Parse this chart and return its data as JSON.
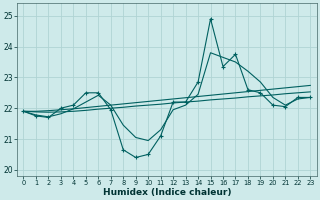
{
  "xlabel": "Humidex (Indice chaleur)",
  "xlim": [
    -0.5,
    23.5
  ],
  "ylim": [
    19.8,
    25.4
  ],
  "yticks": [
    20,
    21,
    22,
    23,
    24,
    25
  ],
  "xticks": [
    0,
    1,
    2,
    3,
    4,
    5,
    6,
    7,
    8,
    9,
    10,
    11,
    12,
    13,
    14,
    15,
    16,
    17,
    18,
    19,
    20,
    21,
    22,
    23
  ],
  "bg_color": "#ceeaea",
  "grid_color": "#b0d4d4",
  "line_color": "#006060",
  "main_line": [
    21.9,
    21.75,
    21.7,
    22.0,
    22.1,
    22.5,
    22.5,
    21.95,
    20.65,
    20.4,
    20.5,
    21.1,
    22.2,
    22.2,
    22.85,
    24.9,
    23.35,
    23.75,
    22.6,
    22.5,
    22.1,
    22.05,
    22.35,
    22.35
  ],
  "trend_line1": [
    21.9,
    21.88,
    21.87,
    21.88,
    21.9,
    21.93,
    21.97,
    22.0,
    22.03,
    22.07,
    22.1,
    22.13,
    22.17,
    22.2,
    22.23,
    22.27,
    22.3,
    22.33,
    22.37,
    22.4,
    22.43,
    22.47,
    22.5,
    22.53
  ],
  "trend_line2": [
    21.9,
    21.9,
    21.92,
    21.95,
    21.98,
    22.02,
    22.06,
    22.1,
    22.14,
    22.18,
    22.22,
    22.26,
    22.3,
    22.34,
    22.38,
    22.42,
    22.46,
    22.5,
    22.54,
    22.58,
    22.62,
    22.66,
    22.7,
    22.74
  ],
  "smooth_line": [
    21.9,
    21.78,
    21.72,
    21.82,
    21.98,
    22.2,
    22.42,
    22.1,
    21.45,
    21.05,
    20.95,
    21.3,
    21.95,
    22.1,
    22.45,
    23.8,
    23.65,
    23.5,
    23.2,
    22.85,
    22.35,
    22.1,
    22.3,
    22.35
  ]
}
